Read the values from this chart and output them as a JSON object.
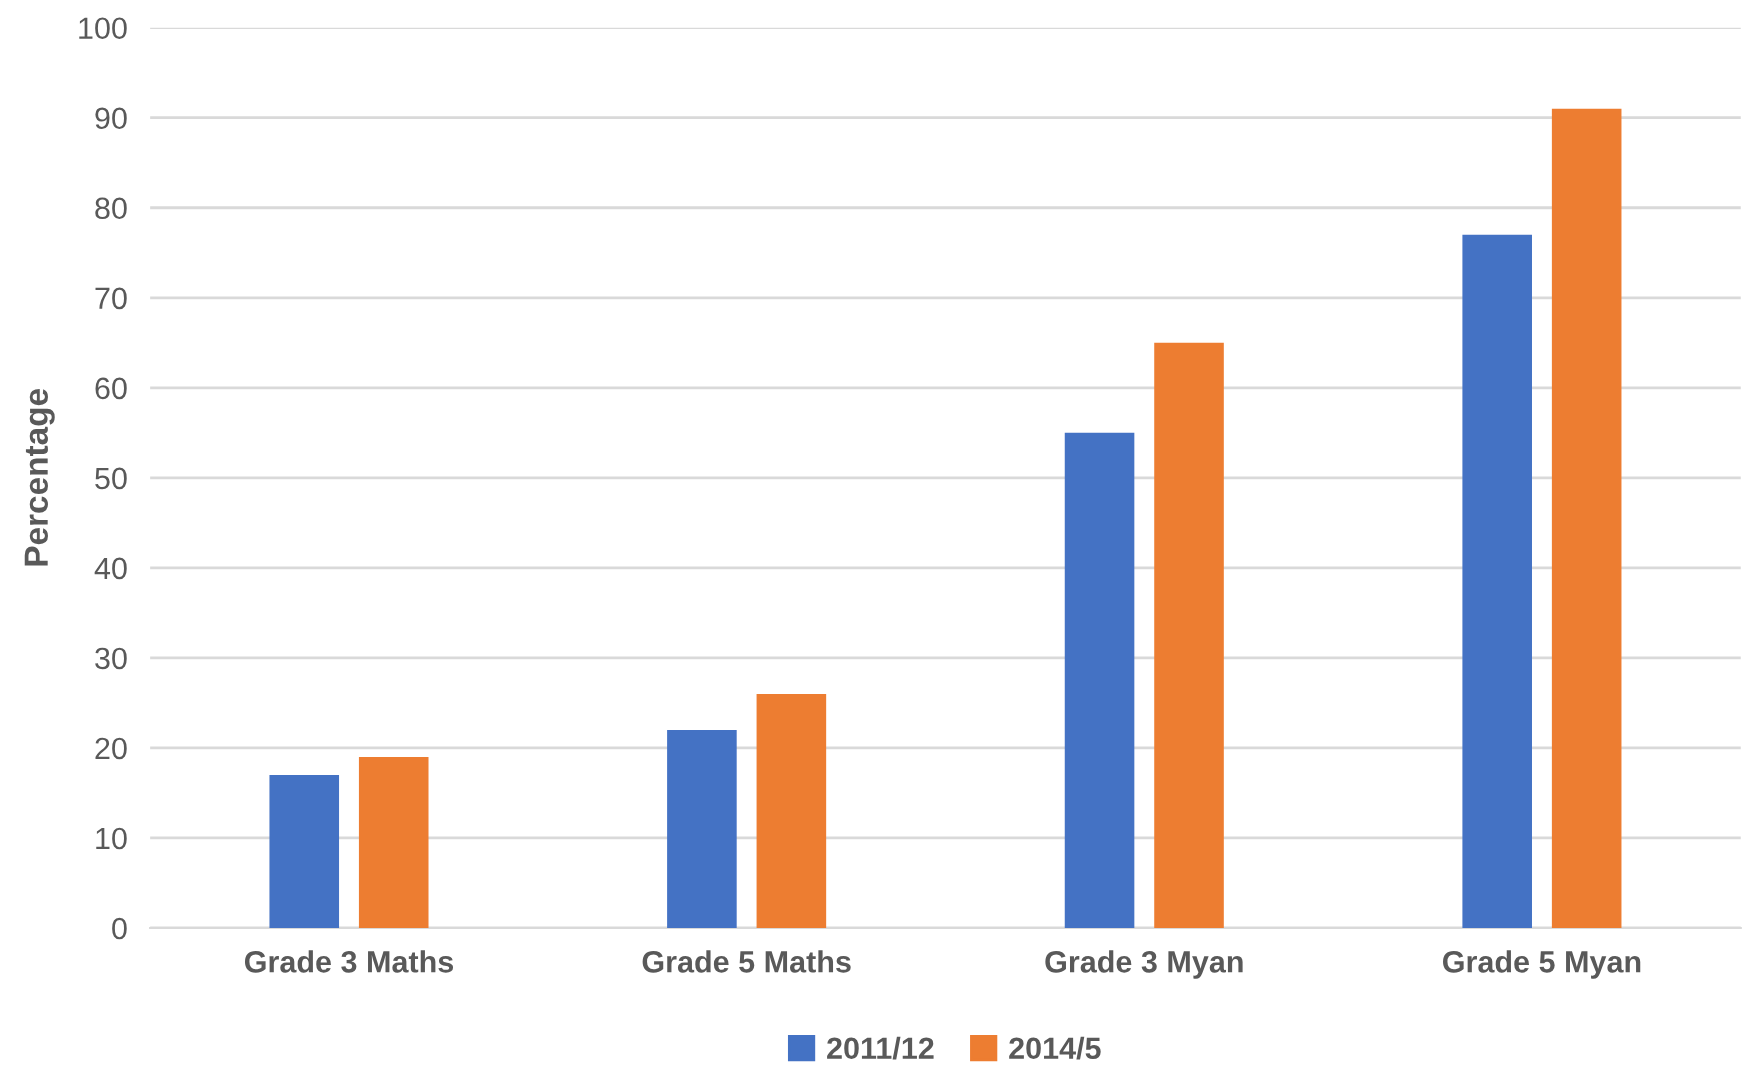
{
  "chart_data": {
    "type": "bar",
    "ylabel": "Percentage",
    "categories": [
      "Grade 3 Maths",
      "Grade 5 Maths",
      "Grade 3 Myan",
      "Grade 5 Myan"
    ],
    "series": [
      {
        "name": "2011/12",
        "color": "#4472c4",
        "values": [
          17,
          22,
          55,
          77
        ]
      },
      {
        "name": "2014/5",
        "color": "#ed7d31",
        "values": [
          19,
          26,
          65,
          91
        ]
      }
    ],
    "ylim": [
      0,
      100
    ],
    "yticks": [
      0,
      10,
      20,
      30,
      40,
      50,
      60,
      70,
      80,
      90,
      100
    ],
    "grid": "y",
    "legend": "bottom"
  }
}
